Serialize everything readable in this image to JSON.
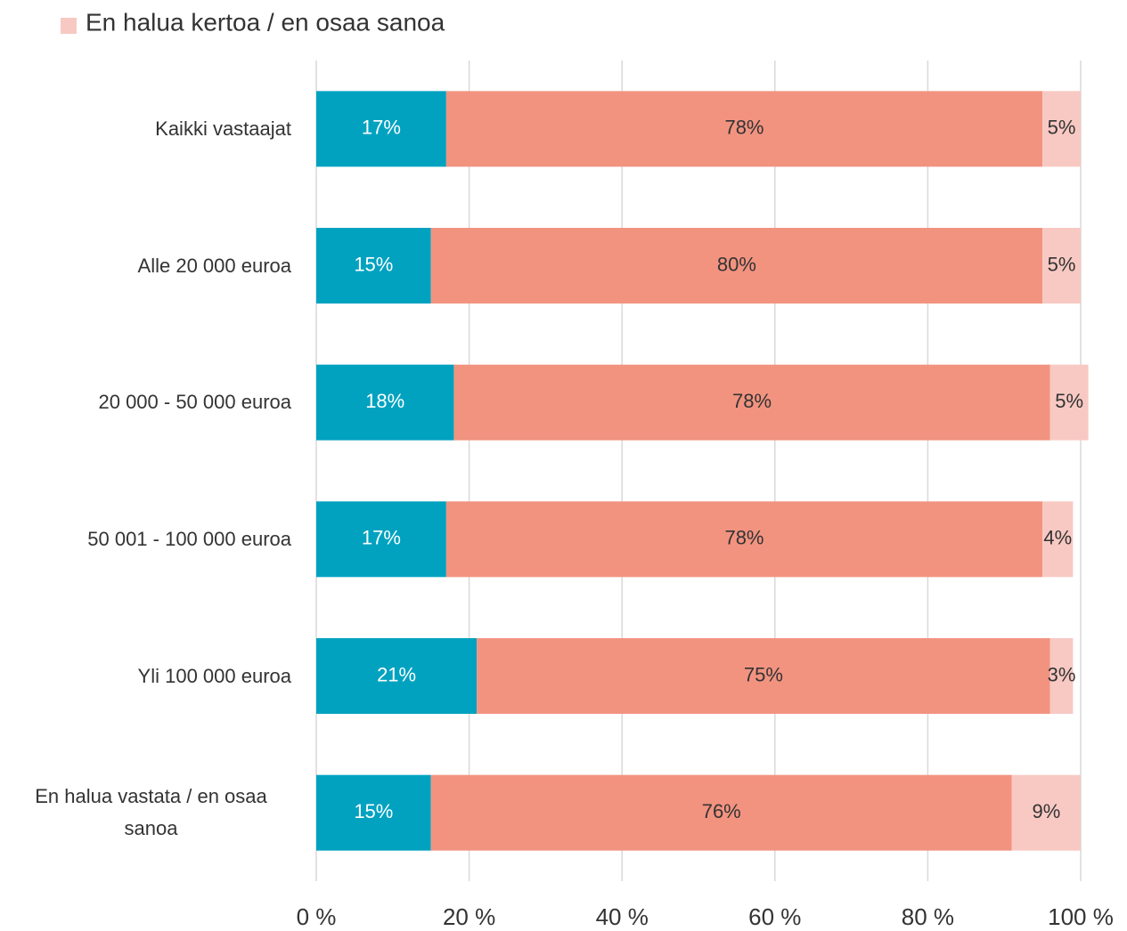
{
  "chart_data": {
    "type": "stacked_barh",
    "categories": [
      "Kaikki vastaajat",
      "Alle 20 000 euroa",
      "20 000 - 50 000 euroa",
      "50 001 - 100 000 euroa",
      "Yli 100 000 euroa",
      "En halua vastata / en osaa sanoa"
    ],
    "series": [
      {
        "color": "#00a2c0",
        "values": [
          17,
          15,
          18,
          17,
          21,
          15
        ],
        "value_labels": [
          "17%",
          "15%",
          "18%",
          "17%",
          "21%",
          "15%"
        ]
      },
      {
        "color": "#f29380",
        "values": [
          78,
          80,
          78,
          78,
          75,
          76
        ],
        "value_labels": [
          "78%",
          "80%",
          "78%",
          "78%",
          "75%",
          "76%"
        ]
      },
      {
        "name": "En halua kertoa / en osaa sanoa",
        "color": "#f8c9c3",
        "values": [
          5,
          5,
          5,
          4,
          3,
          9
        ],
        "value_labels": [
          "5%",
          "5%",
          "5%",
          "4%",
          "3%",
          "9%"
        ]
      }
    ],
    "xlim": [
      0,
      100
    ],
    "xticks": [
      {
        "value": 0,
        "label": "0 %"
      },
      {
        "value": 20,
        "label": "20 %"
      },
      {
        "value": 40,
        "label": "40 %"
      },
      {
        "value": 60,
        "label": "60 %"
      },
      {
        "value": 80,
        "label": "80 %"
      },
      {
        "value": 100,
        "label": "100 %"
      }
    ],
    "grid": true
  }
}
